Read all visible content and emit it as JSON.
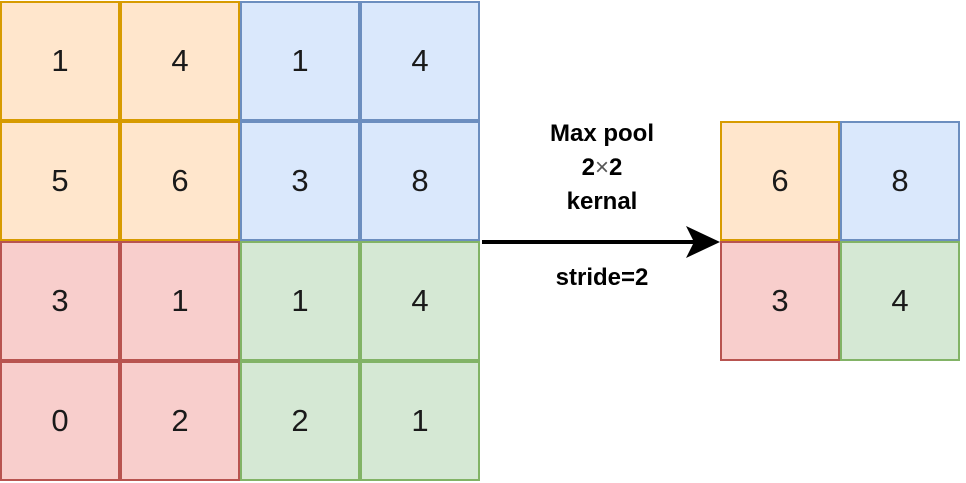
{
  "input_grid": {
    "rows": [
      [
        {
          "value": "1",
          "color": "orange"
        },
        {
          "value": "4",
          "color": "orange"
        },
        {
          "value": "1",
          "color": "blue"
        },
        {
          "value": "4",
          "color": "blue"
        }
      ],
      [
        {
          "value": "5",
          "color": "orange"
        },
        {
          "value": "6",
          "color": "orange"
        },
        {
          "value": "3",
          "color": "blue"
        },
        {
          "value": "8",
          "color": "blue"
        }
      ],
      [
        {
          "value": "3",
          "color": "red"
        },
        {
          "value": "1",
          "color": "red"
        },
        {
          "value": "1",
          "color": "green"
        },
        {
          "value": "4",
          "color": "green"
        }
      ],
      [
        {
          "value": "0",
          "color": "red"
        },
        {
          "value": "2",
          "color": "red"
        },
        {
          "value": "2",
          "color": "green"
        },
        {
          "value": "1",
          "color": "green"
        }
      ]
    ]
  },
  "operation": {
    "line1": "Max pool",
    "kernel_a": "2",
    "kernel_times": "×",
    "kernel_b": "2",
    "line3": "kernal",
    "stride": "stride=2"
  },
  "output_grid": {
    "rows": [
      [
        {
          "value": "6",
          "color": "orange"
        },
        {
          "value": "8",
          "color": "blue"
        }
      ],
      [
        {
          "value": "3",
          "color": "red"
        },
        {
          "value": "4",
          "color": "green"
        }
      ]
    ]
  },
  "colors": {
    "orange_fill": "#ffe6cc",
    "orange_border": "#d79b00",
    "blue_fill": "#dae8fc",
    "blue_border": "#6c8ebf",
    "red_fill": "#f8cecc",
    "red_border": "#b85450",
    "green_fill": "#d5e8d4",
    "green_border": "#82b366",
    "arrow": "#000000"
  }
}
